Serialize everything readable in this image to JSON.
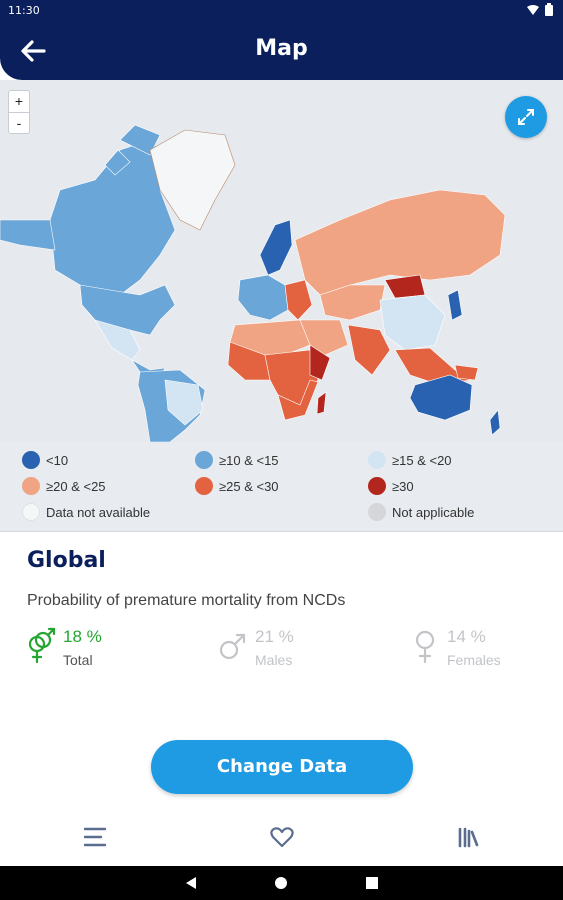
{
  "status_bar": {
    "time": "11:30"
  },
  "header": {
    "title": "Map"
  },
  "map": {
    "zoom_in": "+",
    "zoom_out": "-"
  },
  "legend": {
    "items": [
      {
        "label": "<10",
        "color": "#2862b0"
      },
      {
        "label": "≥10 & <15",
        "color": "#6aa6d8"
      },
      {
        "label": "≥15 & <20",
        "color": "#d3e4f2"
      },
      {
        "label": "≥20 & <25",
        "color": "#f0a483"
      },
      {
        "label": "≥25 & <30",
        "color": "#e3623f"
      },
      {
        "label": "≥30",
        "color": "#b3261e"
      },
      {
        "label": "Data not available",
        "color": "#f4f6f8"
      },
      {
        "label": "Not applicable",
        "color": "#d4d6d9"
      }
    ]
  },
  "region": {
    "name": "Global",
    "indicator": "Probability of premature mortality from NCDs",
    "stats": {
      "total": {
        "value": "18 %",
        "label": "Total"
      },
      "males": {
        "value": "21 %",
        "label": "Males"
      },
      "females": {
        "value": "14 %",
        "label": "Females"
      }
    }
  },
  "actions": {
    "change_data": "Change Data"
  },
  "colors": {
    "brand_navy": "#0b1f5c",
    "accent_blue": "#1e9be3",
    "total_green": "#26a532"
  },
  "icons": {
    "back": "arrow-left-icon",
    "expand": "expand-icon",
    "nav_menu": "menu-icon",
    "nav_favorites": "heart-icon",
    "nav_library": "library-icon"
  }
}
